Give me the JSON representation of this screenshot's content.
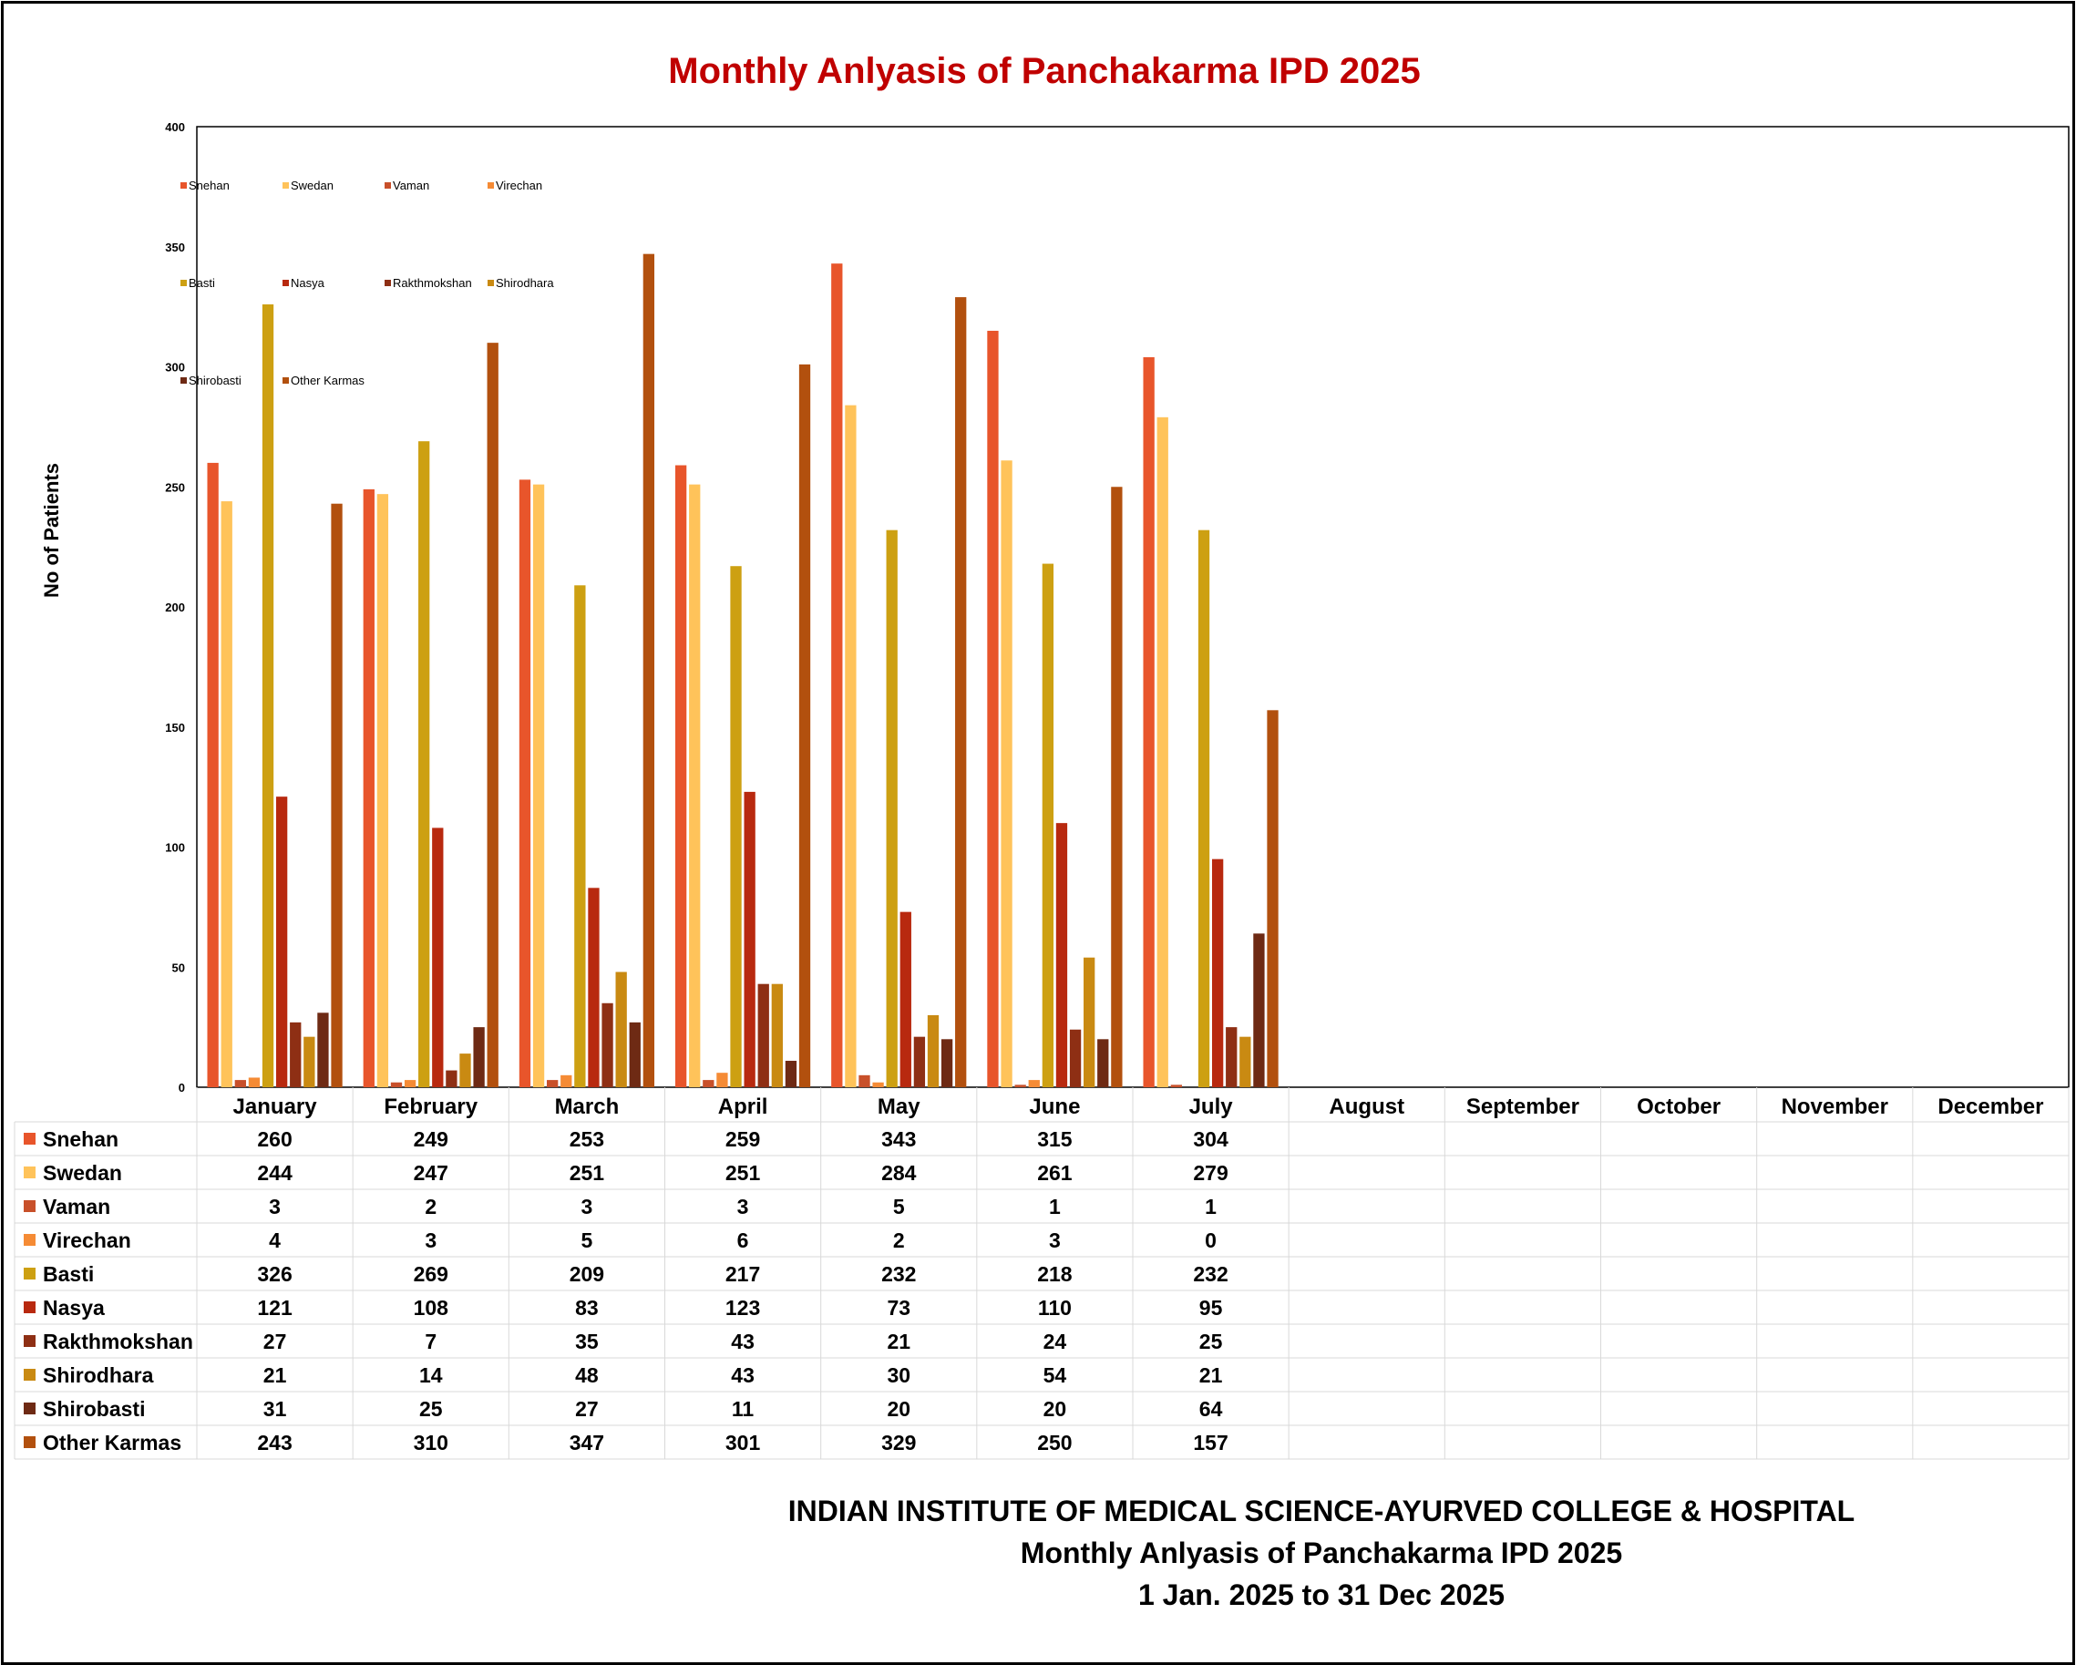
{
  "page_title": "Monthly Anlyasis of Panchakarma IPD  2025",
  "footer": {
    "line1": "INDIAN INSTITUTE OF MEDICAL SCIENCE-AYURVED COLLEGE & HOSPITAL",
    "line2": "Monthly Anlyasis of Panchakarma  IPD   2025",
    "line3": "1 Jan. 2025 to 31 Dec 2025"
  },
  "chart_data": {
    "type": "bar",
    "title": "Monthly Anlyasis of Panchakarma IPD  2025",
    "xlabel": "",
    "ylabel": "No of Patients",
    "ylim": [
      0,
      400
    ],
    "yticks": [
      0,
      50,
      100,
      150,
      200,
      250,
      300,
      350,
      400
    ],
    "grid": false,
    "legend_position": "top-left",
    "data_table": true,
    "categories": [
      "January",
      "February",
      "March",
      "April",
      "May",
      "June",
      "July",
      "August",
      "September",
      "October",
      "November",
      "December"
    ],
    "series": [
      {
        "name": "Snehan",
        "color": "#E8552B",
        "values": [
          260,
          249,
          253,
          259,
          343,
          315,
          304,
          null,
          null,
          null,
          null,
          null
        ]
      },
      {
        "name": "Swedan",
        "color": "#FFC35A",
        "values": [
          244,
          247,
          251,
          251,
          284,
          261,
          279,
          null,
          null,
          null,
          null,
          null
        ]
      },
      {
        "name": "Vaman",
        "color": "#C8502A",
        "values": [
          3,
          2,
          3,
          3,
          5,
          1,
          1,
          null,
          null,
          null,
          null,
          null
        ]
      },
      {
        "name": "Virechan",
        "color": "#F58B35",
        "values": [
          4,
          3,
          5,
          6,
          2,
          3,
          0,
          null,
          null,
          null,
          null,
          null
        ]
      },
      {
        "name": "Basti",
        "color": "#CDA012",
        "values": [
          326,
          269,
          209,
          217,
          232,
          218,
          232,
          null,
          null,
          null,
          null,
          null
        ]
      },
      {
        "name": "Nasya",
        "color": "#B8290F",
        "values": [
          121,
          108,
          83,
          123,
          73,
          110,
          95,
          null,
          null,
          null,
          null,
          null
        ]
      },
      {
        "name": "Rakthmokshan",
        "color": "#8E2F14",
        "values": [
          27,
          7,
          35,
          43,
          21,
          24,
          25,
          null,
          null,
          null,
          null,
          null
        ]
      },
      {
        "name": "Shirodhara",
        "color": "#C98A12",
        "values": [
          21,
          14,
          48,
          43,
          30,
          54,
          21,
          null,
          null,
          null,
          null,
          null
        ]
      },
      {
        "name": "Shirobasti",
        "color": "#6E2A14",
        "values": [
          31,
          25,
          27,
          11,
          20,
          20,
          64,
          null,
          null,
          null,
          null,
          null
        ]
      },
      {
        "name": "Other Karmas",
        "color": "#B2500E",
        "values": [
          243,
          310,
          347,
          301,
          329,
          250,
          157,
          null,
          null,
          null,
          null,
          null
        ]
      }
    ]
  }
}
